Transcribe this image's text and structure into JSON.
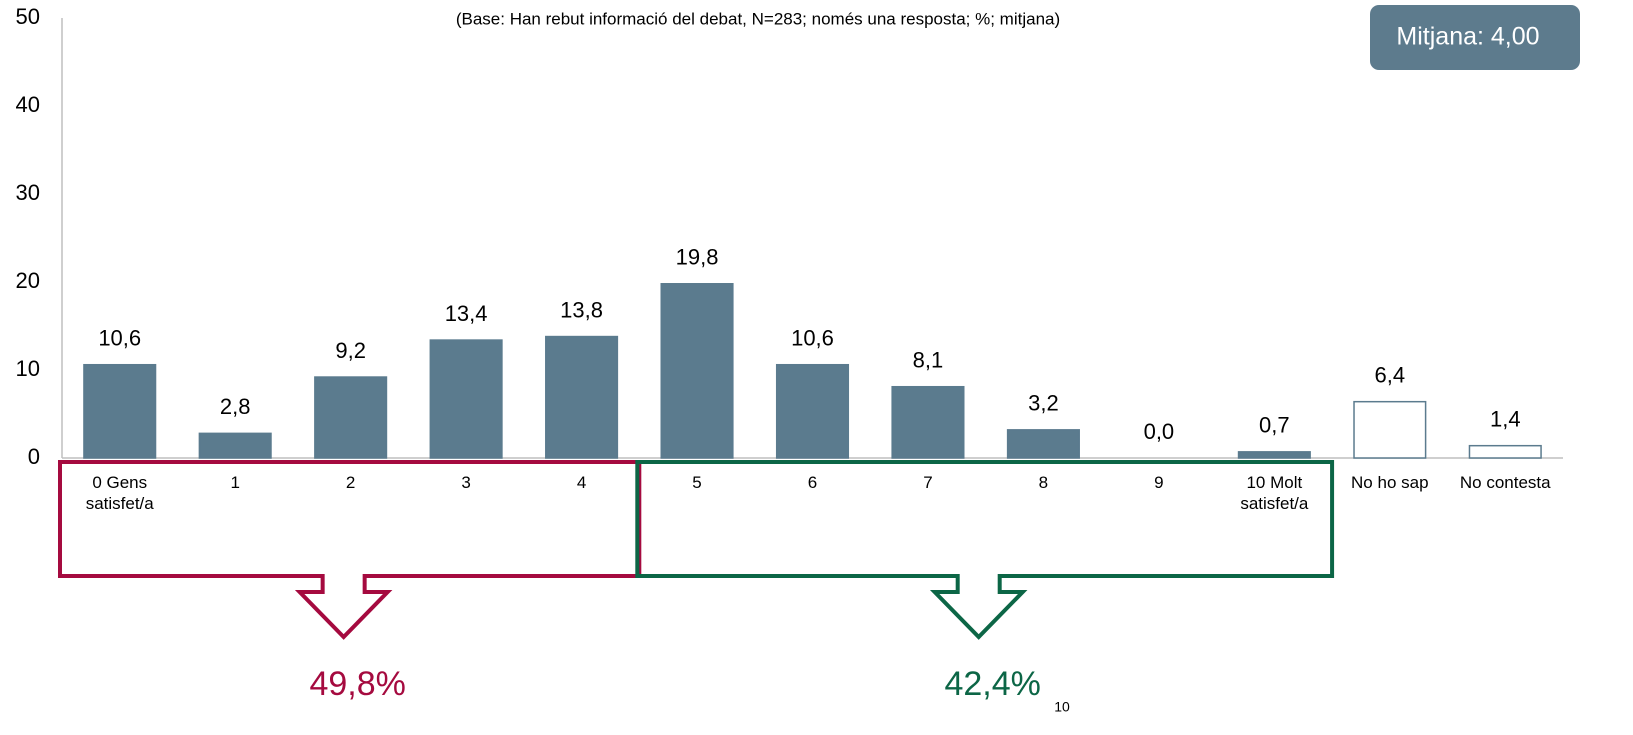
{
  "chart_data": {
    "type": "bar",
    "subtitle": "(Base: Han rebut informació del debat, N=283; només una resposta; %; mitjana)",
    "badge": "Mitjana: 4,00",
    "badge_color": "#5d7b8d",
    "page_number": "10",
    "categories": [
      "0 Gens satisfet/a",
      "1",
      "2",
      "3",
      "4",
      "5",
      "6",
      "7",
      "8",
      "9",
      "10 Molt satisfet/a",
      "No ho sap",
      "No contesta"
    ],
    "values": [
      10.6,
      2.8,
      9.2,
      13.4,
      13.8,
      19.8,
      10.6,
      8.1,
      3.2,
      0.0,
      0.7,
      6.4,
      1.4
    ],
    "value_labels": [
      "10,6",
      "2,8",
      "9,2",
      "13,4",
      "13,8",
      "19,8",
      "10,6",
      "8,1",
      "3,2",
      "0,0",
      "0,7",
      "6,4",
      "1,4"
    ],
    "fill_colors": [
      "#5b7b8e",
      "#5b7b8e",
      "#5b7b8e",
      "#5b7b8e",
      "#5b7b8e",
      "#5b7b8e",
      "#5b7b8e",
      "#5b7b8e",
      "#5b7b8e",
      "#5b7b8e",
      "#5b7b8e",
      "#ffffff",
      "#ffffff"
    ],
    "edge_color": "#5b7b8e",
    "ylim": [
      0,
      50
    ],
    "yticks": [
      0,
      10,
      20,
      30,
      40,
      50
    ],
    "grid": false,
    "groups": [
      {
        "label": "49,8%",
        "value": 49.8,
        "color": "#a50a3f",
        "span": [
          0,
          4
        ]
      },
      {
        "label": "42,4%",
        "value": 42.4,
        "color": "#0c6646",
        "span": [
          5,
          10
        ]
      }
    ]
  }
}
